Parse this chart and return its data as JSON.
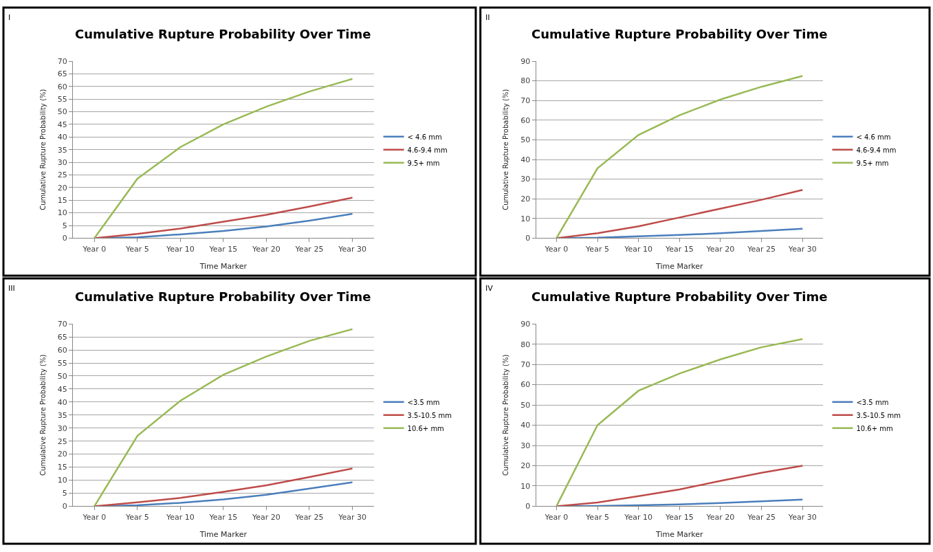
{
  "chart_data": [
    {
      "type": "line",
      "title": "Cumulative Rupture Probability Over Time",
      "xlabel": "Time Marker",
      "ylabel": "Cumulative Rupture Probability (%)",
      "annotations": [
        "I"
      ],
      "categories": [
        "Year 0",
        "Year 5",
        "Year 10",
        "Year 15",
        "Year 20",
        "Year 25",
        "Year 30"
      ],
      "ylim": [
        0,
        70
      ],
      "yticks": [
        0,
        5,
        10,
        15,
        20,
        25,
        30,
        35,
        40,
        45,
        50,
        55,
        60,
        65,
        70
      ],
      "grid": "y",
      "legend": "right",
      "marker": "none",
      "line_style": "solid",
      "series": [
        {
          "name": "< 4.6 mm",
          "color": "#4a7ebb",
          "values": [
            0,
            0.3,
            1.5,
            2.8,
            4.6,
            6.9,
            9.6
          ]
        },
        {
          "name": "4.6-9.4 mm",
          "color": "#be4b48",
          "values": [
            0,
            1.7,
            3.8,
            6.5,
            9.2,
            12.5,
            16
          ]
        },
        {
          "name": "9.5+ mm",
          "color": "#98b954",
          "values": [
            0,
            23.5,
            36,
            45,
            52,
            58,
            63
          ]
        }
      ]
    },
    {
      "type": "line",
      "title": "Cumulative Rupture Probability Over Time",
      "xlabel": "Time Marker",
      "ylabel": "Cumulative Rupture Probability (%)",
      "annotations": [
        "II"
      ],
      "categories": [
        "Year 0",
        "Year 5",
        "Year 10",
        "Year 15",
        "Year 20",
        "Year 25",
        "Year 30"
      ],
      "ylim": [
        0,
        90
      ],
      "yticks": [
        0,
        10,
        20,
        30,
        40,
        50,
        60,
        70,
        80,
        90
      ],
      "grid": "y",
      "legend": "right",
      "marker": "none",
      "line_style": "solid",
      "series": [
        {
          "name": "< 4.6 mm",
          "color": "#4a7ebb",
          "values": [
            0,
            0.2,
            0.9,
            1.6,
            2.5,
            3.6,
            4.8
          ]
        },
        {
          "name": "4.6-9.4 mm",
          "color": "#be4b48",
          "values": [
            0,
            2.5,
            6,
            10.5,
            15,
            19.5,
            24.5
          ]
        },
        {
          "name": "9.5+ mm",
          "color": "#98b954",
          "values": [
            0,
            35.5,
            52.5,
            62.5,
            70.5,
            77,
            82.5
          ]
        }
      ]
    },
    {
      "type": "line",
      "title": "Cumulative Rupture Probability Over Time",
      "xlabel": "Time Marker",
      "ylabel": "Cumulative Rupture Probability (%)",
      "annotations": [
        "III"
      ],
      "categories": [
        "Year 0",
        "Year 5",
        "Year 10",
        "Year 15",
        "Year 20",
        "Year 25",
        "Year 30"
      ],
      "ylim": [
        0,
        70
      ],
      "yticks": [
        0,
        5,
        10,
        15,
        20,
        25,
        30,
        35,
        40,
        45,
        50,
        55,
        60,
        65,
        70
      ],
      "grid": "y",
      "legend": "right",
      "marker": "none",
      "line_style": "solid",
      "series": [
        {
          "name": "<3.5 mm",
          "color": "#4a7ebb",
          "values": [
            0,
            0.4,
            1.3,
            2.6,
            4.4,
            6.8,
            9.2
          ]
        },
        {
          "name": "3.5-10.5 mm",
          "color": "#be4b48",
          "values": [
            0,
            1.5,
            3.2,
            5.5,
            8,
            11.2,
            14.5
          ]
        },
        {
          "name": "10.6+ mm",
          "color": "#98b954",
          "values": [
            0,
            27,
            40.5,
            50.5,
            57.5,
            63.5,
            68
          ]
        }
      ]
    },
    {
      "type": "line",
      "title": "Cumulative Rupture Probability Over Time",
      "xlabel": "Time Marker",
      "ylabel": "Cumulative Rupture Probability (%)",
      "annotations": [
        "IV"
      ],
      "categories": [
        "Year 0",
        "Year 5",
        "Year 10",
        "Year 15",
        "Year 20",
        "Year 25",
        "Year 30"
      ],
      "ylim": [
        0,
        90
      ],
      "yticks": [
        0,
        10,
        20,
        30,
        40,
        50,
        60,
        70,
        80,
        90
      ],
      "grid": "y",
      "legend": "right",
      "marker": "none",
      "line_style": "solid",
      "series": [
        {
          "name": "<3.5 mm",
          "color": "#4a7ebb",
          "values": [
            0,
            0.1,
            0.5,
            0.9,
            1.6,
            2.4,
            3.3
          ]
        },
        {
          "name": "3.5-10.5 mm",
          "color": "#be4b48",
          "values": [
            0,
            1.8,
            5,
            8.3,
            12.5,
            16.5,
            20
          ]
        },
        {
          "name": "10.6+ mm",
          "color": "#98b954",
          "values": [
            0,
            40,
            57,
            65.5,
            72.5,
            78.5,
            82.5
          ]
        }
      ]
    }
  ]
}
